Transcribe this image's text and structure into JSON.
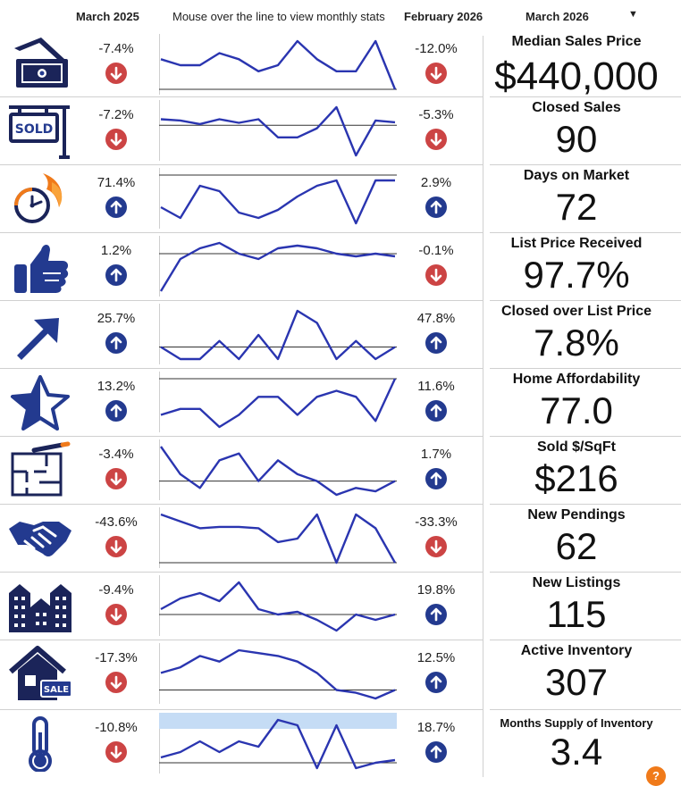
{
  "header": {
    "col1": "March 2025",
    "hint": "Mouse over the line to view monthly stats",
    "col2": "February 2026",
    "col3": "March 2026",
    "dropdown_icon": "caret-down-icon"
  },
  "colors": {
    "up": "#233a8f",
    "down": "#cc4444",
    "line": "#2a35b0",
    "highlight": "#c5dcf5"
  },
  "rows": [
    {
      "icon": "cash-icon",
      "yoy": "-7.4%",
      "yoy_dir": "down",
      "mom": "-12.0%",
      "mom_dir": "down",
      "name": "Median Sales Price",
      "value": "$440,000",
      "trend": [
        5,
        4,
        4,
        6,
        5,
        3,
        4,
        8,
        5,
        3,
        3,
        8,
        0
      ],
      "baseline": 0
    },
    {
      "icon": "sold-sign-icon",
      "yoy": "-7.2%",
      "yoy_dir": "down",
      "mom": "-5.3%",
      "mom_dir": "down",
      "name": "Closed Sales",
      "value": "90",
      "trend": [
        5,
        4.8,
        4.2,
        5,
        4.4,
        5,
        2,
        2,
        3.5,
        7,
        -1,
        4.8,
        4.5
      ],
      "baseline": 4
    },
    {
      "icon": "clock-fire-icon",
      "yoy": "71.4%",
      "yoy_dir": "up",
      "mom": "2.9%",
      "mom_dir": "up",
      "name": "Days on Market",
      "value": "72",
      "trend": [
        3,
        1,
        7,
        6,
        2,
        1,
        2.5,
        5,
        7,
        8,
        0,
        8,
        8
      ],
      "baseline": 9
    },
    {
      "icon": "thumbs-up-icon",
      "yoy": "1.2%",
      "yoy_dir": "up",
      "mom": "-0.1%",
      "mom_dir": "down",
      "name": "List Price Received",
      "value": "97.7%",
      "trend": [
        -4,
        2,
        4,
        5,
        3,
        2,
        4,
        4.5,
        4,
        3,
        2.5,
        3,
        2.5
      ],
      "baseline": 3
    },
    {
      "icon": "trend-arrow-icon",
      "yoy": "25.7%",
      "yoy_dir": "up",
      "mom": "47.8%",
      "mom_dir": "up",
      "name": "Closed over List Price",
      "value": "7.8%",
      "trend": [
        3,
        1,
        1,
        4,
        1,
        5,
        1,
        9,
        7,
        1,
        4,
        1,
        3
      ],
      "baseline": 3
    },
    {
      "icon": "star-icon",
      "yoy": "13.2%",
      "yoy_dir": "up",
      "mom": "11.6%",
      "mom_dir": "up",
      "name": "Home Affordability",
      "value": "77.0",
      "trend": [
        2,
        3,
        3,
        0,
        2,
        5,
        5,
        2,
        5,
        6,
        5,
        1,
        8
      ],
      "baseline": 8
    },
    {
      "icon": "floor-plan-icon",
      "yoy": "-3.4%",
      "yoy_dir": "down",
      "mom": "1.7%",
      "mom_dir": "up",
      "name": "Sold $/SqFt",
      "value": "$216",
      "trend": [
        5,
        1,
        -1,
        3,
        4,
        0,
        3,
        1,
        0,
        -2,
        -1,
        -1.5,
        0
      ],
      "baseline": 0
    },
    {
      "icon": "handshake-icon",
      "yoy": "-43.6%",
      "yoy_dir": "down",
      "mom": "-33.3%",
      "mom_dir": "down",
      "name": "New Pendings",
      "value": "62",
      "trend": [
        5,
        4,
        3,
        3.2,
        3.2,
        3,
        1,
        1.5,
        5,
        -2,
        5,
        3,
        -2
      ],
      "baseline": -2
    },
    {
      "icon": "buildings-icon",
      "yoy": "-9.4%",
      "yoy_dir": "down",
      "mom": "19.8%",
      "mom_dir": "up",
      "name": "New Listings",
      "value": "115",
      "trend": [
        3,
        5,
        6,
        4.5,
        8,
        3,
        2,
        2.5,
        1,
        -1,
        2,
        1,
        2
      ],
      "baseline": 2
    },
    {
      "icon": "house-sale-icon",
      "yoy": "-17.3%",
      "yoy_dir": "down",
      "mom": "12.5%",
      "mom_dir": "up",
      "name": "Active Inventory",
      "value": "307",
      "trend": [
        3,
        4,
        6,
        5,
        7,
        6.5,
        6,
        5,
        3,
        0,
        -0.5,
        -1.5,
        0
      ],
      "baseline": 0
    },
    {
      "icon": "thermometer-icon",
      "yoy": "-10.8%",
      "yoy_dir": "down",
      "mom": "18.7%",
      "mom_dir": "up",
      "name": "Months Supply of Inventory",
      "value": "3.4",
      "trend": [
        1,
        2,
        4,
        2,
        4,
        3,
        8,
        7,
        -1,
        7,
        -1,
        0,
        0.5
      ],
      "baseline": 0,
      "highlight": true
    }
  ]
}
